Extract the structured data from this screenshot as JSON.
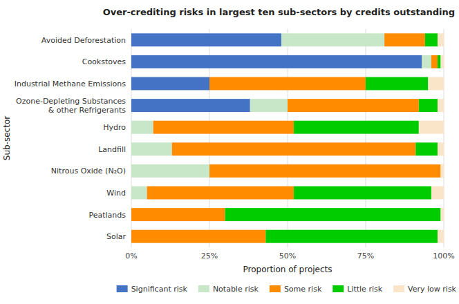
{
  "chart_data": {
    "type": "bar",
    "orientation": "horizontal",
    "stacked": true,
    "title": "Over-crediting risks in largest ten sub-sectors by credits outstanding",
    "x_label": "Proportion of projects",
    "y_label": "Sub-sector",
    "categories": [
      "Solar",
      "Peatlands",
      "Wind",
      "Nitrous Oxide (N₂O)",
      "Landfill",
      "Hydro",
      "Ozone-Depleting Substances\n& other Refrigerants",
      "Industrial Methane Emissions",
      "Cookstoves",
      "Avoided Deforestation"
    ],
    "series": [
      {
        "name": "Significant risk",
        "color": "#4472C4",
        "values": [
          0,
          0,
          0,
          0,
          0,
          0,
          38,
          25,
          93,
          48
        ]
      },
      {
        "name": "Notable risk",
        "color": "#C8E6C8",
        "values": [
          0,
          0,
          5,
          25,
          13,
          7,
          12,
          0,
          3,
          33
        ]
      },
      {
        "name": "Some risk",
        "color": "#FF8C00",
        "values": [
          43,
          30,
          47,
          74,
          78,
          45,
          42,
          50,
          2,
          13
        ]
      },
      {
        "name": "Little risk",
        "color": "#00CC00",
        "values": [
          55,
          69,
          44,
          0,
          7,
          40,
          6,
          20,
          1,
          4
        ]
      },
      {
        "name": "Very low risk",
        "color": "#FAE5C8",
        "values": [
          2,
          1,
          4,
          1,
          2,
          8,
          2,
          5,
          1,
          2
        ]
      }
    ],
    "xlim": [
      0,
      100
    ],
    "xticks": [
      {
        "value": 0,
        "label": "0%"
      },
      {
        "value": 25,
        "label": "25%"
      },
      {
        "value": 50,
        "label": "50%"
      },
      {
        "value": 75,
        "label": "75%"
      },
      {
        "value": 100,
        "label": "100%"
      }
    ],
    "grid": true,
    "legend": "bottom"
  }
}
